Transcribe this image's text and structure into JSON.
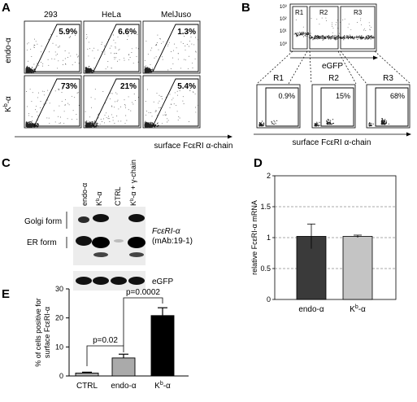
{
  "panels": {
    "A": "A",
    "B": "B",
    "C": "C",
    "D": "D",
    "E": "E"
  },
  "panel_a": {
    "col_headers": [
      "293",
      "HeLa",
      "MelJuso"
    ],
    "row_labels": [
      "endo-α",
      "Kb-α"
    ],
    "row_label_parts": [
      {
        "base": "endo-α",
        "sup": ""
      },
      {
        "base": "K",
        "sup": "b",
        "rest": "-α"
      }
    ],
    "percentages": [
      [
        "5.9%",
        "6.6%",
        "1.3%"
      ],
      [
        "73%",
        "21%",
        "5.4%"
      ]
    ],
    "xaxis_label": "surface FcεRI α-chain"
  },
  "panel_b": {
    "gates": [
      "R1",
      "R2",
      "R3"
    ],
    "top_xlabel": "eGFP",
    "top_ticks": [
      "10³",
      "10²",
      "10¹",
      "10⁰"
    ],
    "sub_percentages": [
      "0.9%",
      "15%",
      "68%"
    ],
    "xaxis_label": "surface FcεRI α-chain"
  },
  "panel_c": {
    "lane_labels": [
      {
        "base": "endo-α",
        "sup": "",
        "rest": ""
      },
      {
        "base": "K",
        "sup": "b",
        "rest": "-α"
      },
      {
        "base": "CTRL",
        "sup": "",
        "rest": ""
      },
      {
        "base": "K",
        "sup": "b",
        "rest": "-α + γ-chain"
      }
    ],
    "golgi_label": "Golgi form",
    "er_label": "ER form",
    "fcer_label": "FcεRI-α",
    "mab_label": "(mAb:19-1)",
    "egfp_label": "eGFP"
  },
  "chart_data": [
    {
      "type": "bar",
      "panel": "D",
      "categories": [
        "endo-α",
        "Kb-α"
      ],
      "values": [
        1.02,
        1.02
      ],
      "errors": [
        0.2,
        0.02
      ],
      "ylabel": "relative FcεRI-α mRNA",
      "ylim": [
        0,
        2
      ],
      "yticks": [
        "0",
        "0.5",
        "1",
        "1.5",
        "2"
      ],
      "colors": [
        "#3a3a3a",
        "#c4c4c4"
      ],
      "grid": true
    },
    {
      "type": "bar",
      "panel": "E",
      "categories": [
        "CTRL",
        "endo-α",
        "Kb-α"
      ],
      "values": [
        1.0,
        6.2,
        20.8
      ],
      "errors": [
        0.3,
        1.3,
        2.7
      ],
      "ylabel": "% of cells positive for surface FcεRI-α",
      "ylim": [
        0,
        30
      ],
      "yticks": [
        "0",
        "10",
        "20",
        "30"
      ],
      "colors": [
        "#aaaaaa",
        "#aaaaaa",
        "#000000"
      ],
      "annotations": [
        "p=0.02",
        "p=0.0002"
      ],
      "grid": false
    }
  ]
}
